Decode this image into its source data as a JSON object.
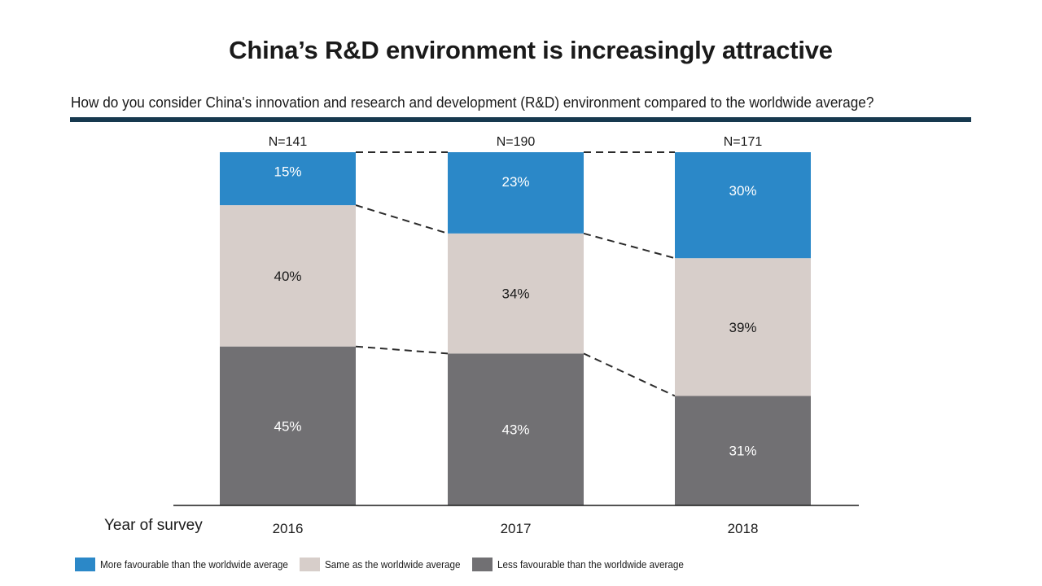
{
  "header": {
    "title": "China’s R&D environment is increasingly attractive",
    "subtitle": "How do you consider China's innovation and research and development (R&D) environment compared to the worldwide average?"
  },
  "chart_data": {
    "type": "bar",
    "stacked": true,
    "percent_stacked": true,
    "title": "China’s R&D environment is increasingly attractive",
    "subtitle": "How do you consider China's innovation and research and development (R&D) environment compared to the worldwide average?",
    "xlabel": "Year of survey",
    "ylabel": "",
    "ylim": [
      0,
      100
    ],
    "grid": false,
    "categories": [
      "2016",
      "2017",
      "2018"
    ],
    "sample_sizes": [
      "N=141",
      "N=190",
      "N=171"
    ],
    "series": [
      {
        "name": "Less favourable than the worldwide average",
        "color": "#717073",
        "values": [
          45,
          43,
          31
        ],
        "labels": [
          "45%",
          "43%",
          "31%"
        ]
      },
      {
        "name": "Same as the worldwide average",
        "color": "#d7ceca",
        "values": [
          40,
          34,
          39
        ],
        "labels": [
          "40%",
          "34%",
          "39%"
        ]
      },
      {
        "name": "More favourable than the worldwide average",
        "color": "#2b88c8",
        "values": [
          15,
          23,
          30
        ],
        "labels": [
          "15%",
          "23%",
          "30%"
        ]
      }
    ],
    "connector_lines": "dashed",
    "legend_position": "bottom-left",
    "legend_order": [
      "More favourable than the worldwide average",
      "Same as the worldwide average",
      "Less favourable than the worldwide average"
    ]
  },
  "colors": {
    "rule": "#17394f",
    "more": "#2b88c8",
    "same": "#d7ceca",
    "less": "#717073"
  }
}
